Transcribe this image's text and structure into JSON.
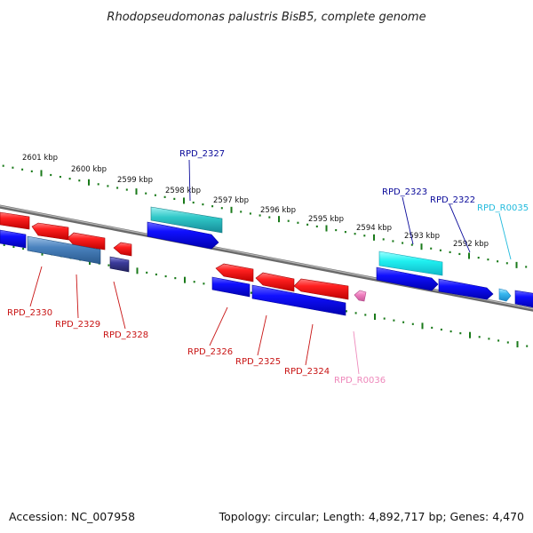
{
  "title": "Rhodopseudomonas palustris BisB5, complete genome",
  "footer": {
    "accession": "Accession: NC_007958",
    "summary": "Topology: circular; Length: 4,892,717 bp; Genes: 4,470"
  },
  "scale_labels": [
    "2601 kbp",
    "2600 kbp",
    "2599 kbp",
    "2598 kbp",
    "2597 kbp",
    "2596 kbp",
    "2595 kbp",
    "2594 kbp",
    "2593 kbp",
    "2592 kbp"
  ],
  "genes": [
    {
      "name": "RPD_2330",
      "strand": "minus",
      "color": "#d01010"
    },
    {
      "name": "RPD_2329",
      "strand": "minus",
      "color": "#d01010"
    },
    {
      "name": "RPD_2328",
      "strand": "minus",
      "color": "#d01010"
    },
    {
      "name": "RPD_2327",
      "strand": "plus",
      "color": "#000090"
    },
    {
      "name": "RPD_2326",
      "strand": "minus",
      "color": "#d01010"
    },
    {
      "name": "RPD_2325",
      "strand": "minus",
      "color": "#d01010"
    },
    {
      "name": "RPD_2324",
      "strand": "minus",
      "color": "#d01010"
    },
    {
      "name": "RPD_R0036",
      "strand": "minus",
      "color": "#ee88bb"
    },
    {
      "name": "RPD_2323",
      "strand": "plus",
      "color": "#000090"
    },
    {
      "name": "RPD_2322",
      "strand": "plus",
      "color": "#000090"
    },
    {
      "name": "RPD_R0035",
      "strand": "plus",
      "color": "#22bbdd"
    }
  ],
  "colors": {
    "forward_cds": "#1a1ae6",
    "reverse_cds": "#e61a1a",
    "forward_rna": "#4fc8ee",
    "reverse_rna": "#f07ab8",
    "tick": "#1a7a1a",
    "backbone": "#808080"
  }
}
